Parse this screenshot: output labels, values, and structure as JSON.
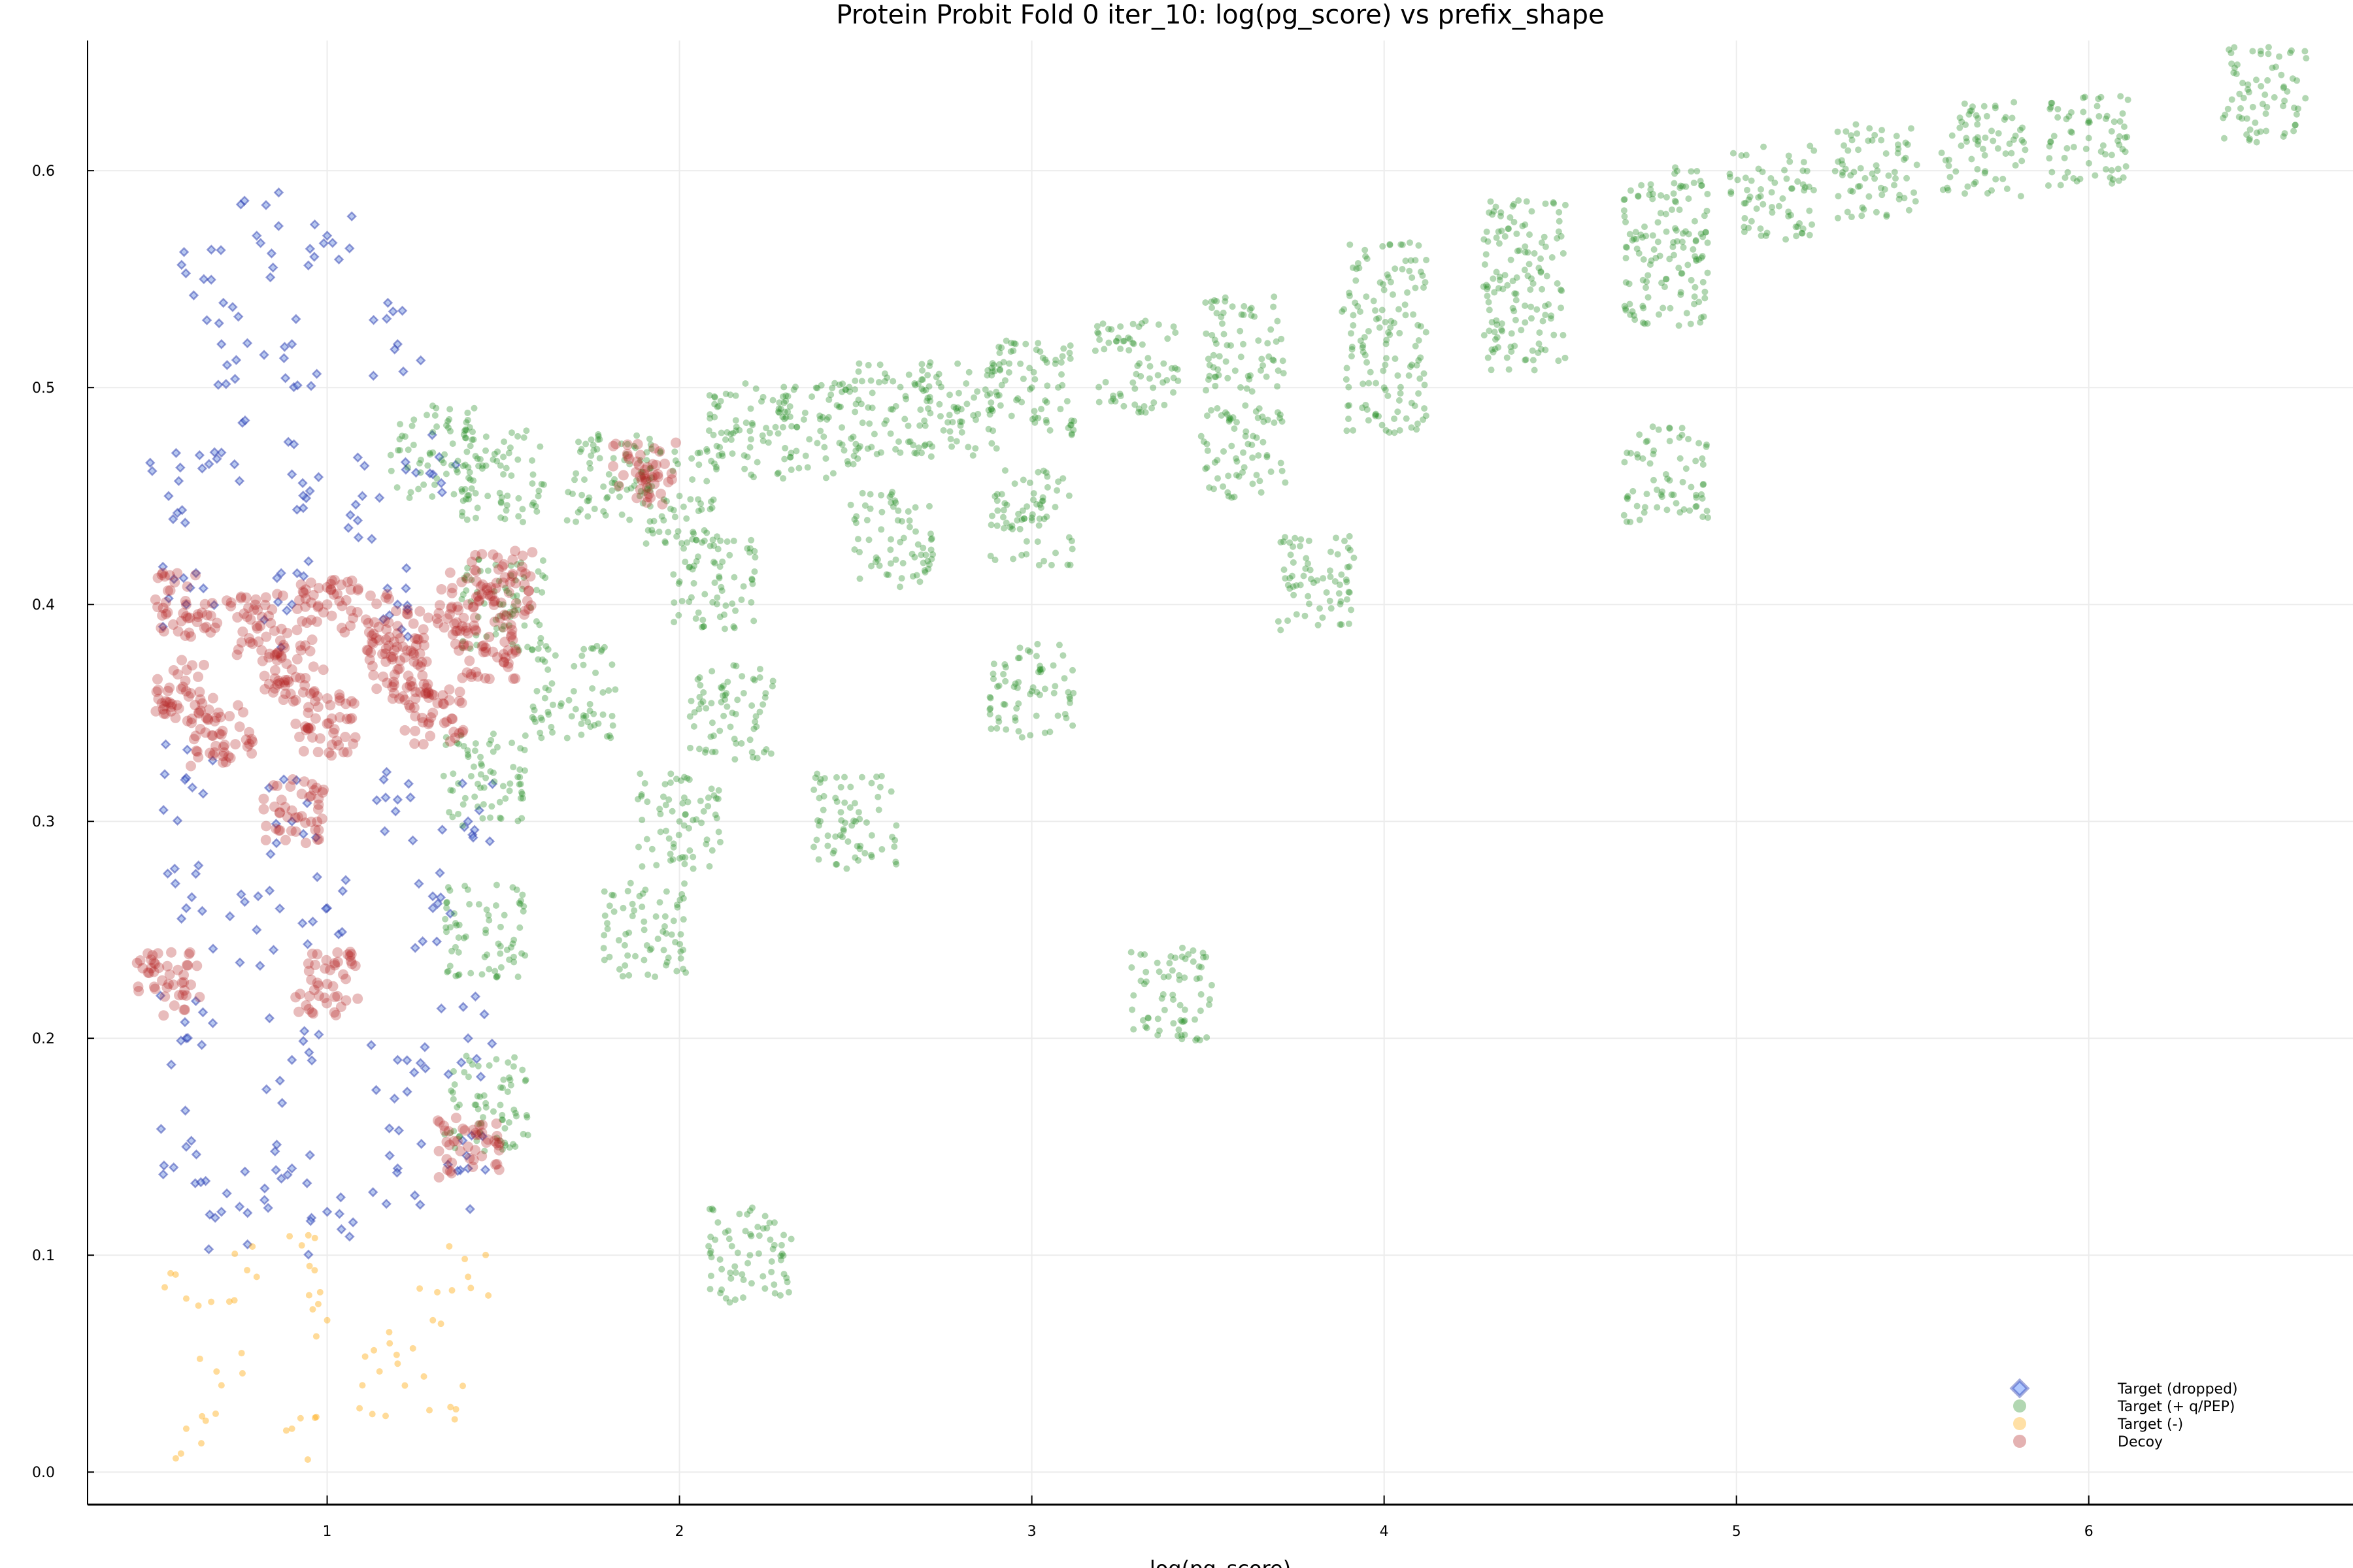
{
  "chart_data": {
    "type": "scatter",
    "title": "Protein Probit Fold 0 iter_10: log(pg_score) vs prefix_shape",
    "xlabel": "log(pg_score)",
    "ylabel": "",
    "xlim": [
      0.32,
      6.75
    ],
    "ylim": [
      -0.015,
      0.66
    ],
    "x_ticks": [
      1,
      2,
      3,
      4,
      5,
      6
    ],
    "y_ticks": [
      0.0,
      0.1,
      0.2,
      0.3,
      0.4,
      0.5,
      0.6
    ],
    "x_tick_labels": [
      "1",
      "2",
      "3",
      "4",
      "5",
      "6"
    ],
    "y_tick_labels": [
      "0.0",
      "0.1",
      "0.2",
      "0.3",
      "0.4",
      "0.5",
      "0.6"
    ],
    "grid": true,
    "legend_position": "bottom-right",
    "series": [
      {
        "name": "Target (dropped)",
        "marker": "diamond",
        "color": "#1f2fa8",
        "points": [
          [
            0.55,
            0.45
          ],
          [
            0.7,
            0.47
          ],
          [
            0.9,
            0.46
          ],
          [
            1.1,
            0.45
          ],
          [
            1.3,
            0.46
          ],
          [
            0.6,
            0.4
          ],
          [
            0.9,
            0.4
          ],
          [
            1.2,
            0.4
          ],
          [
            0.6,
            0.32
          ],
          [
            0.9,
            0.3
          ],
          [
            1.2,
            0.31
          ],
          [
            1.4,
            0.3
          ],
          [
            0.6,
            0.26
          ],
          [
            0.8,
            0.25
          ],
          [
            1.0,
            0.26
          ],
          [
            1.3,
            0.26
          ],
          [
            0.6,
            0.2
          ],
          [
            0.9,
            0.19
          ],
          [
            1.2,
            0.19
          ],
          [
            1.4,
            0.2
          ],
          [
            0.6,
            0.15
          ],
          [
            0.9,
            0.14
          ],
          [
            1.2,
            0.14
          ],
          [
            1.4,
            0.14
          ],
          [
            0.7,
            0.12
          ],
          [
            1.0,
            0.12
          ],
          [
            0.7,
            0.52
          ],
          [
            0.9,
            0.52
          ],
          [
            1.2,
            0.52
          ],
          [
            0.65,
            0.55
          ],
          [
            0.8,
            0.57
          ],
          [
            1.0,
            0.57
          ]
        ]
      },
      {
        "name": "Target (+ q/PEP)",
        "marker": "circle",
        "color": "#228b22",
        "points": [
          [
            1.3,
            0.47
          ],
          [
            1.5,
            0.46
          ],
          [
            1.5,
            0.4
          ],
          [
            1.45,
            0.32
          ],
          [
            1.45,
            0.25
          ],
          [
            1.45,
            0.17
          ],
          [
            1.8,
            0.46
          ],
          [
            2.0,
            0.45
          ],
          [
            2.1,
            0.41
          ],
          [
            2.2,
            0.48
          ],
          [
            2.15,
            0.35
          ],
          [
            2.4,
            0.48
          ],
          [
            2.6,
            0.49
          ],
          [
            2.6,
            0.43
          ],
          [
            2.8,
            0.49
          ],
          [
            3.0,
            0.5
          ],
          [
            3.0,
            0.44
          ],
          [
            3.3,
            0.51
          ],
          [
            3.6,
            0.52
          ],
          [
            3.6,
            0.47
          ],
          [
            4.0,
            0.545
          ],
          [
            4.0,
            0.5
          ],
          [
            4.4,
            0.565
          ],
          [
            4.4,
            0.53
          ],
          [
            4.8,
            0.58
          ],
          [
            4.8,
            0.55
          ],
          [
            5.1,
            0.59
          ],
          [
            5.4,
            0.6
          ],
          [
            5.7,
            0.61
          ],
          [
            6.0,
            0.615
          ],
          [
            6.5,
            0.635
          ],
          [
            2.0,
            0.3
          ],
          [
            2.2,
            0.1
          ],
          [
            3.4,
            0.22
          ],
          [
            4.8,
            0.46
          ],
          [
            2.5,
            0.3
          ],
          [
            3.0,
            0.36
          ],
          [
            3.8,
            0.41
          ],
          [
            1.9,
            0.25
          ],
          [
            1.7,
            0.36
          ]
        ]
      },
      {
        "name": "Target (-)",
        "marker": "circle",
        "color": "#ffa500",
        "points": [
          [
            0.6,
            0.08
          ],
          [
            0.8,
            0.09
          ],
          [
            1.0,
            0.07
          ],
          [
            1.3,
            0.07
          ],
          [
            1.4,
            0.09
          ],
          [
            0.7,
            0.04
          ],
          [
            0.9,
            0.02
          ],
          [
            1.1,
            0.04
          ],
          [
            1.35,
            0.03
          ],
          [
            0.6,
            0.02
          ],
          [
            1.2,
            0.05
          ],
          [
            0.95,
            0.095
          ]
        ]
      },
      {
        "name": "Decoy",
        "marker": "circle",
        "color": "#b22222",
        "points": [
          [
            0.6,
            0.4
          ],
          [
            0.8,
            0.39
          ],
          [
            1.0,
            0.4
          ],
          [
            1.2,
            0.39
          ],
          [
            1.4,
            0.4
          ],
          [
            1.5,
            0.41
          ],
          [
            0.6,
            0.36
          ],
          [
            0.9,
            0.37
          ],
          [
            1.2,
            0.37
          ],
          [
            1.45,
            0.38
          ],
          [
            0.7,
            0.34
          ],
          [
            1.0,
            0.345
          ],
          [
            1.3,
            0.35
          ],
          [
            1.9,
            0.46
          ],
          [
            1.4,
            0.15
          ],
          [
            0.55,
            0.225
          ],
          [
            1.0,
            0.225
          ],
          [
            0.9,
            0.305
          ]
        ]
      }
    ]
  }
}
